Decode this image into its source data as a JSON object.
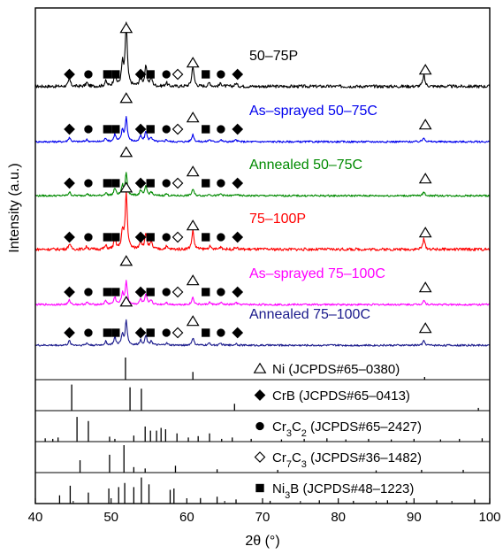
{
  "chart_data": {
    "type": "line",
    "xlabel": "2θ (°)",
    "ylabel": "Intensity (a.u.)",
    "xlim": [
      40,
      100
    ],
    "xticks": [
      "40",
      "50",
      "60",
      "70",
      "80",
      "90",
      "100"
    ],
    "series": [
      {
        "name": "50–75P",
        "color": "#000000",
        "peaks": [
          {
            "x": 44.5,
            "h": 0.12
          },
          {
            "x": 46.8,
            "h": 0.06
          },
          {
            "x": 49.3,
            "h": 0.08
          },
          {
            "x": 50.5,
            "h": 0.22
          },
          {
            "x": 51.5,
            "h": 0.35
          },
          {
            "x": 52.0,
            "h": 1.0
          },
          {
            "x": 53.9,
            "h": 0.18
          },
          {
            "x": 54.6,
            "h": 0.32
          },
          {
            "x": 55.3,
            "h": 0.14
          },
          {
            "x": 57.3,
            "h": 0.06
          },
          {
            "x": 60.8,
            "h": 0.34
          },
          {
            "x": 63.0,
            "h": 0.06
          },
          {
            "x": 64.5,
            "h": 0.05
          },
          {
            "x": 66.5,
            "h": 0.05
          },
          {
            "x": 91.3,
            "h": 0.18
          }
        ]
      },
      {
        "name": "As–sprayed 50–75C",
        "color": "#0000ee",
        "peaks": [
          {
            "x": 44.5,
            "h": 0.12
          },
          {
            "x": 46.8,
            "h": 0.06
          },
          {
            "x": 49.3,
            "h": 0.1
          },
          {
            "x": 50.5,
            "h": 0.2
          },
          {
            "x": 51.5,
            "h": 0.3
          },
          {
            "x": 52.0,
            "h": 0.65
          },
          {
            "x": 53.9,
            "h": 0.15
          },
          {
            "x": 54.6,
            "h": 0.28
          },
          {
            "x": 55.3,
            "h": 0.12
          },
          {
            "x": 57.3,
            "h": 0.06
          },
          {
            "x": 60.8,
            "h": 0.2
          },
          {
            "x": 63.0,
            "h": 0.06
          },
          {
            "x": 64.5,
            "h": 0.05
          },
          {
            "x": 66.5,
            "h": 0.05
          },
          {
            "x": 91.3,
            "h": 0.12
          }
        ]
      },
      {
        "name": "Annealed 50–75C",
        "color": "#008a00",
        "peaks": [
          {
            "x": 44.5,
            "h": 0.1
          },
          {
            "x": 46.8,
            "h": 0.06
          },
          {
            "x": 49.3,
            "h": 0.08
          },
          {
            "x": 50.5,
            "h": 0.2
          },
          {
            "x": 51.5,
            "h": 0.25
          },
          {
            "x": 52.0,
            "h": 0.6
          },
          {
            "x": 53.9,
            "h": 0.14
          },
          {
            "x": 54.6,
            "h": 0.25
          },
          {
            "x": 55.3,
            "h": 0.1
          },
          {
            "x": 57.3,
            "h": 0.05
          },
          {
            "x": 60.8,
            "h": 0.18
          },
          {
            "x": 63.0,
            "h": 0.05
          },
          {
            "x": 64.5,
            "h": 0.05
          },
          {
            "x": 66.5,
            "h": 0.04
          },
          {
            "x": 91.3,
            "h": 0.1
          }
        ]
      },
      {
        "name": "75–100P",
        "color": "#ff0000",
        "peaks": [
          {
            "x": 44.5,
            "h": 0.1
          },
          {
            "x": 46.8,
            "h": 0.05
          },
          {
            "x": 49.3,
            "h": 0.06
          },
          {
            "x": 50.5,
            "h": 0.18
          },
          {
            "x": 51.5,
            "h": 0.3
          },
          {
            "x": 52.0,
            "h": 1.0
          },
          {
            "x": 53.9,
            "h": 0.16
          },
          {
            "x": 54.6,
            "h": 0.28
          },
          {
            "x": 55.3,
            "h": 0.12
          },
          {
            "x": 57.3,
            "h": 0.05
          },
          {
            "x": 60.8,
            "h": 0.34
          },
          {
            "x": 63.0,
            "h": 0.05
          },
          {
            "x": 64.5,
            "h": 0.05
          },
          {
            "x": 66.5,
            "h": 0.04
          },
          {
            "x": 91.3,
            "h": 0.18
          }
        ]
      },
      {
        "name": "As–sprayed 75–100C",
        "color": "#ff00ff",
        "peaks": [
          {
            "x": 44.5,
            "h": 0.12
          },
          {
            "x": 46.8,
            "h": 0.06
          },
          {
            "x": 49.3,
            "h": 0.1
          },
          {
            "x": 50.5,
            "h": 0.2
          },
          {
            "x": 51.5,
            "h": 0.28
          },
          {
            "x": 52.0,
            "h": 0.62
          },
          {
            "x": 53.9,
            "h": 0.14
          },
          {
            "x": 54.6,
            "h": 0.26
          },
          {
            "x": 55.3,
            "h": 0.12
          },
          {
            "x": 57.3,
            "h": 0.06
          },
          {
            "x": 60.8,
            "h": 0.2
          },
          {
            "x": 63.0,
            "h": 0.06
          },
          {
            "x": 64.5,
            "h": 0.05
          },
          {
            "x": 66.5,
            "h": 0.05
          },
          {
            "x": 91.3,
            "h": 0.12
          }
        ]
      },
      {
        "name": "Annealed 75–100C",
        "color": "#1a1a8c",
        "peaks": [
          {
            "x": 44.5,
            "h": 0.12
          },
          {
            "x": 46.8,
            "h": 0.06
          },
          {
            "x": 49.3,
            "h": 0.1
          },
          {
            "x": 50.5,
            "h": 0.2
          },
          {
            "x": 51.5,
            "h": 0.28
          },
          {
            "x": 52.0,
            "h": 0.65
          },
          {
            "x": 53.9,
            "h": 0.14
          },
          {
            "x": 54.6,
            "h": 0.26
          },
          {
            "x": 55.3,
            "h": 0.12
          },
          {
            "x": 57.3,
            "h": 0.06
          },
          {
            "x": 60.8,
            "h": 0.2
          },
          {
            "x": 63.0,
            "h": 0.06
          },
          {
            "x": 64.5,
            "h": 0.05
          },
          {
            "x": 66.5,
            "h": 0.05
          },
          {
            "x": 91.3,
            "h": 0.12
          }
        ]
      }
    ],
    "phase_markers": [
      {
        "symbol": "filled-diamond",
        "x": 44.5
      },
      {
        "symbol": "filled-circle",
        "x": 47.0
      },
      {
        "symbol": "filled-square",
        "x": 49.5
      },
      {
        "symbol": "filled-square",
        "x": 50.6
      },
      {
        "symbol": "open-triangle",
        "x": 52.0
      },
      {
        "symbol": "filled-diamond",
        "x": 53.9
      },
      {
        "symbol": "filled-square",
        "x": 55.2
      },
      {
        "symbol": "filled-circle",
        "x": 57.3
      },
      {
        "symbol": "open-diamond",
        "x": 58.8
      },
      {
        "symbol": "open-triangle",
        "x": 60.8
      },
      {
        "symbol": "filled-square",
        "x": 62.5
      },
      {
        "symbol": "filled-circle",
        "x": 64.5
      },
      {
        "symbol": "filled-diamond",
        "x": 66.7
      },
      {
        "symbol": "open-triangle",
        "x": 91.5
      }
    ],
    "references": [
      {
        "symbol": "open-triangle",
        "label_main": "Ni (JCPDS#65–0380)",
        "label_pre": "",
        "sub1": "",
        "label_mid": "",
        "sub2": "",
        "label_post": "",
        "lines": [
          {
            "x": 51.9,
            "h": 1.0
          },
          {
            "x": 60.8,
            "h": 0.35
          },
          {
            "x": 91.4,
            "h": 0.12
          }
        ]
      },
      {
        "symbol": "filled-diamond",
        "label_main": "CrB (JCPDS#65–0413)",
        "label_pre": "",
        "sub1": "",
        "label_mid": "",
        "sub2": "",
        "label_post": "",
        "lines": [
          {
            "x": 44.8,
            "h": 0.95
          },
          {
            "x": 52.5,
            "h": 0.85
          },
          {
            "x": 54.0,
            "h": 0.8
          },
          {
            "x": 66.3,
            "h": 0.25
          },
          {
            "x": 98.5,
            "h": 0.1
          }
        ]
      },
      {
        "symbol": "filled-circle",
        "label_main": "",
        "label_pre": "Cr",
        "sub1": "3",
        "label_mid": "C",
        "sub2": "2",
        "label_post": " (JCPDS#65–2427)",
        "lines": [
          {
            "x": 41.3,
            "h": 0.12
          },
          {
            "x": 42.3,
            "h": 0.1
          },
          {
            "x": 43.0,
            "h": 0.15
          },
          {
            "x": 45.5,
            "h": 0.9
          },
          {
            "x": 47.0,
            "h": 0.75
          },
          {
            "x": 49.8,
            "h": 0.18
          },
          {
            "x": 50.5,
            "h": 0.1
          },
          {
            "x": 53.0,
            "h": 0.22
          },
          {
            "x": 54.5,
            "h": 0.55
          },
          {
            "x": 55.2,
            "h": 0.4
          },
          {
            "x": 56.0,
            "h": 0.4
          },
          {
            "x": 56.6,
            "h": 0.5
          },
          {
            "x": 57.2,
            "h": 0.45
          },
          {
            "x": 58.7,
            "h": 0.3
          },
          {
            "x": 60.2,
            "h": 0.15
          },
          {
            "x": 61.5,
            "h": 0.2
          },
          {
            "x": 63.0,
            "h": 0.3
          },
          {
            "x": 64.6,
            "h": 0.1
          },
          {
            "x": 66.0,
            "h": 0.15
          },
          {
            "x": 68.5,
            "h": 0.1
          },
          {
            "x": 72.5,
            "h": 0.08
          },
          {
            "x": 75.5,
            "h": 0.1
          },
          {
            "x": 78.5,
            "h": 0.12
          },
          {
            "x": 81.0,
            "h": 0.08
          },
          {
            "x": 84.0,
            "h": 0.1
          },
          {
            "x": 87.0,
            "h": 0.08
          },
          {
            "x": 90.0,
            "h": 0.1
          },
          {
            "x": 93.5,
            "h": 0.08
          },
          {
            "x": 96.0,
            "h": 0.1
          },
          {
            "x": 99.0,
            "h": 0.12
          }
        ]
      },
      {
        "symbol": "open-diamond",
        "label_main": "",
        "label_pre": "Cr",
        "sub1": "7",
        "label_mid": "C",
        "sub2": "3",
        "label_post": " (JCPDS#36–1482)",
        "lines": [
          {
            "x": 45.9,
            "h": 0.45
          },
          {
            "x": 49.8,
            "h": 0.65
          },
          {
            "x": 51.7,
            "h": 1.0
          },
          {
            "x": 53.0,
            "h": 0.2
          },
          {
            "x": 54.5,
            "h": 0.15
          },
          {
            "x": 58.5,
            "h": 0.25
          },
          {
            "x": 64.0,
            "h": 0.12
          },
          {
            "x": 72.0,
            "h": 0.1
          },
          {
            "x": 85.0,
            "h": 0.08
          },
          {
            "x": 91.0,
            "h": 0.1
          },
          {
            "x": 96.5,
            "h": 0.1
          }
        ]
      },
      {
        "symbol": "filled-square",
        "label_main": "",
        "label_pre": "Ni",
        "sub1": "3",
        "label_mid": "B (JCPDS#48–1223)",
        "sub2": "",
        "label_post": "",
        "lines": [
          {
            "x": 43.2,
            "h": 0.3
          },
          {
            "x": 44.6,
            "h": 0.65
          },
          {
            "x": 47.0,
            "h": 0.4
          },
          {
            "x": 49.7,
            "h": 0.55
          },
          {
            "x": 51.0,
            "h": 0.6
          },
          {
            "x": 51.8,
            "h": 0.75
          },
          {
            "x": 53.0,
            "h": 0.6
          },
          {
            "x": 54.0,
            "h": 0.95
          },
          {
            "x": 55.0,
            "h": 0.7
          },
          {
            "x": 57.8,
            "h": 0.5
          },
          {
            "x": 58.3,
            "h": 0.55
          },
          {
            "x": 61.8,
            "h": 0.2
          },
          {
            "x": 64.0,
            "h": 0.25
          },
          {
            "x": 66.5,
            "h": 0.15
          },
          {
            "x": 71.0,
            "h": 0.1
          },
          {
            "x": 77.5,
            "h": 0.12
          },
          {
            "x": 82.0,
            "h": 0.1
          },
          {
            "x": 86.5,
            "h": 0.12
          },
          {
            "x": 89.0,
            "h": 0.1
          },
          {
            "x": 93.0,
            "h": 0.12
          },
          {
            "x": 98.0,
            "h": 0.15
          }
        ]
      }
    ]
  }
}
